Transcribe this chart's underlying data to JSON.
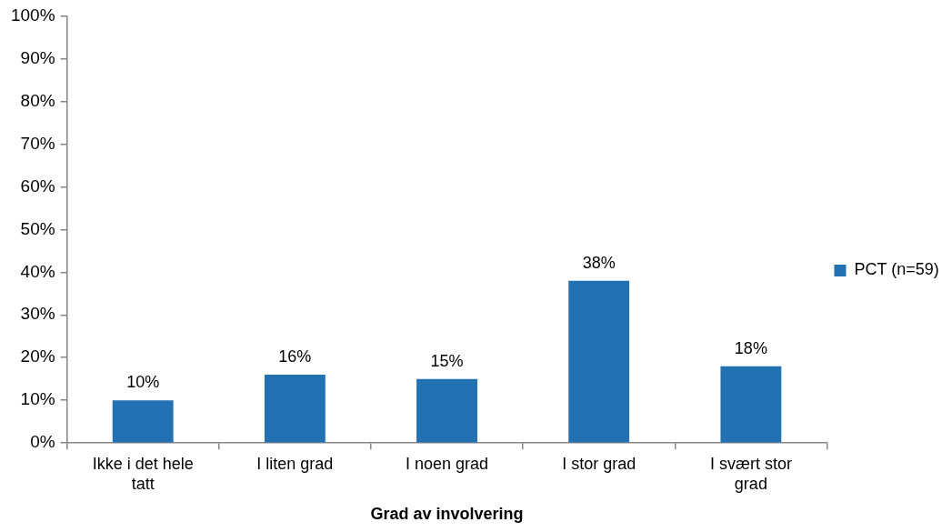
{
  "chart_data": {
    "type": "bar",
    "xlabel": "Grad av involvering",
    "categories": [
      "Ikke i det hele tatt",
      "I liten grad",
      "I noen grad",
      "I stor grad",
      "I svært stor grad"
    ],
    "series": [
      {
        "name": "PCT (n=59)",
        "color": "#2271b3",
        "values": [
          10,
          16,
          15,
          38,
          18
        ],
        "value_labels": [
          "10%",
          "16%",
          "15%",
          "38%",
          "18%"
        ]
      }
    ],
    "ylim": [
      0,
      100
    ],
    "yticks": [
      {
        "value": 0,
        "label": "0%"
      },
      {
        "value": 10,
        "label": "10%"
      },
      {
        "value": 20,
        "label": "20%"
      },
      {
        "value": 30,
        "label": "30%"
      },
      {
        "value": 40,
        "label": "40%"
      },
      {
        "value": 50,
        "label": "50%"
      },
      {
        "value": 60,
        "label": "60%"
      },
      {
        "value": 70,
        "label": "70%"
      },
      {
        "value": 80,
        "label": "80%"
      },
      {
        "value": 90,
        "label": "90%"
      },
      {
        "value": 100,
        "label": "100%"
      }
    ],
    "legend": "right"
  }
}
